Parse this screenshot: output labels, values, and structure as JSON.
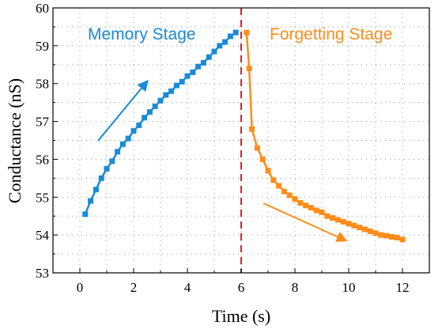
{
  "chart_data": {
    "type": "line",
    "xlabel": "Time (s)",
    "ylabel": "Conductance (nS)",
    "xlim": [
      -1,
      13
    ],
    "ylim": [
      53,
      60
    ],
    "xticks": [
      0,
      2,
      4,
      6,
      8,
      10,
      12
    ],
    "yticks": [
      53,
      54,
      55,
      56,
      57,
      58,
      59,
      60
    ],
    "grid": "dotted",
    "divider_x": 6,
    "colors": {
      "memory": "#1a8ad6",
      "forgetting": "#ff8c1a",
      "divider": "#e02020"
    },
    "annotations": [
      {
        "text": "Memory Stage",
        "color": "#1a8ad6"
      },
      {
        "text": "Forgetting Stage",
        "color": "#ff8c1a"
      }
    ],
    "series": [
      {
        "x": [
          0.2,
          0.4,
          0.6,
          0.8,
          1.0,
          1.2,
          1.4,
          1.6,
          1.8,
          2.0,
          2.2,
          2.4,
          2.6,
          2.8,
          3.0,
          3.2,
          3.4,
          3.6,
          3.8,
          4.0,
          4.2,
          4.4,
          4.6,
          4.8,
          5.0,
          5.2,
          5.4,
          5.6,
          5.8
        ],
        "values": [
          54.55,
          54.9,
          55.2,
          55.5,
          55.75,
          55.95,
          56.2,
          56.4,
          56.55,
          56.75,
          56.9,
          57.1,
          57.25,
          57.4,
          57.55,
          57.7,
          57.8,
          57.95,
          58.05,
          58.2,
          58.3,
          58.45,
          58.55,
          58.7,
          58.85,
          59.0,
          59.1,
          59.25,
          59.35
        ]
      },
      {
        "x": [
          6.2,
          6.3,
          6.4,
          6.6,
          6.8,
          7.0,
          7.2,
          7.4,
          7.6,
          7.8,
          8.0,
          8.2,
          8.4,
          8.6,
          8.8,
          9.0,
          9.2,
          9.4,
          9.6,
          9.8,
          10.0,
          10.2,
          10.4,
          10.6,
          10.8,
          11.0,
          11.2,
          11.4,
          11.6,
          11.8,
          12.0
        ],
        "values": [
          59.35,
          58.4,
          56.8,
          56.3,
          56.0,
          55.7,
          55.45,
          55.3,
          55.15,
          55.05,
          54.95,
          54.85,
          54.78,
          54.72,
          54.65,
          54.6,
          54.5,
          54.45,
          54.4,
          54.35,
          54.3,
          54.25,
          54.2,
          54.15,
          54.1,
          54.05,
          54.0,
          53.98,
          53.95,
          53.93,
          53.88
        ]
      }
    ]
  }
}
